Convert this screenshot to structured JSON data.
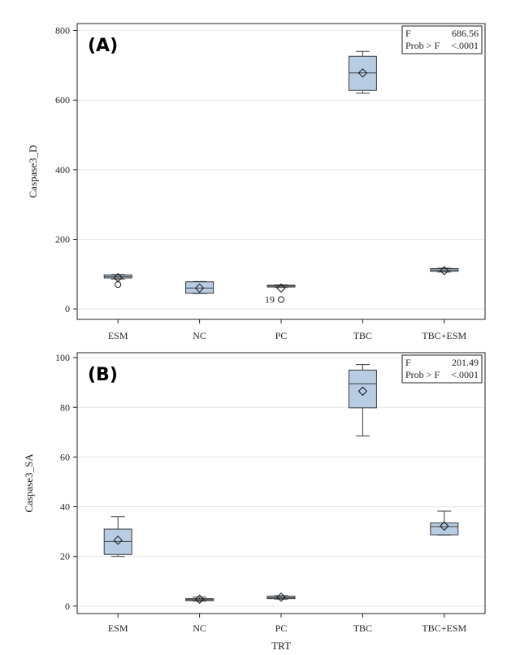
{
  "chart_data": [
    {
      "type": "box",
      "panel_label": "(A)",
      "ylabel": "Caspase3_D",
      "xlabel": "",
      "ylim": [
        -30,
        820
      ],
      "yticks": [
        "0",
        "200",
        "400",
        "600",
        "800"
      ],
      "categories": [
        "ESM",
        "NC",
        "PC",
        "TBC",
        "TBC+ESM"
      ],
      "boxes": [
        {
          "category": "ESM",
          "min": 86,
          "q1": 89,
          "median": 93,
          "q3": 98,
          "max": 99,
          "mean": 90
        },
        {
          "category": "NC",
          "min": 44,
          "q1": 45,
          "median": 60,
          "q3": 78,
          "max": 79,
          "mean": 60
        },
        {
          "category": "PC",
          "min": 62,
          "q1": 63,
          "median": 66,
          "q3": 68,
          "max": 69,
          "mean": 60
        },
        {
          "category": "TBC",
          "min": 620,
          "q1": 628,
          "median": 678,
          "q3": 726,
          "max": 740,
          "mean": 678
        },
        {
          "category": "TBC+ESM",
          "min": 106,
          "q1": 108,
          "median": 112,
          "q3": 116,
          "max": 117,
          "mean": 110
        }
      ],
      "outliers": [
        {
          "category": "ESM",
          "value": 70,
          "label": ""
        },
        {
          "category": "PC",
          "value": 27,
          "label": "19"
        }
      ],
      "stats": {
        "f_label": "F",
        "f_value": "686.56",
        "p_label": "Prob > F",
        "p_value": "<.0001"
      },
      "grid": "horizontal",
      "stats_box_placement": "top-right"
    },
    {
      "type": "box",
      "panel_label": "(B)",
      "ylabel": "Caspase3_SA",
      "xlabel": "TRT",
      "ylim": [
        -3,
        102
      ],
      "yticks": [
        "0",
        "20",
        "40",
        "60",
        "80",
        "100"
      ],
      "categories": [
        "ESM",
        "NC",
        "PC",
        "TBC",
        "TBC+ESM"
      ],
      "boxes": [
        {
          "category": "ESM",
          "min": 20,
          "q1": 20.8,
          "median": 26,
          "q3": 31,
          "max": 36,
          "mean": 26.5
        },
        {
          "category": "NC",
          "min": 2,
          "q1": 2.2,
          "median": 2.6,
          "q3": 3,
          "max": 3.6,
          "mean": 2.8
        },
        {
          "category": "PC",
          "min": 2.8,
          "q1": 3,
          "median": 3.4,
          "q3": 4,
          "max": 4.2,
          "mean": 3.6
        },
        {
          "category": "TBC",
          "min": 68.5,
          "q1": 79.8,
          "median": 89.5,
          "q3": 95,
          "max": 97.2,
          "mean": 86.5
        },
        {
          "category": "TBC+ESM",
          "min": 28.6,
          "q1": 28.7,
          "median": 32,
          "q3": 33.5,
          "max": 38.2,
          "mean": 32.2
        }
      ],
      "outliers": [],
      "stats": {
        "f_label": "F",
        "f_value": "201.49",
        "p_label": "Prob > F",
        "p_value": "<.0001"
      },
      "grid": "horizontal",
      "stats_box_placement": "top-right"
    }
  ],
  "colors": {
    "box_fill": "#b8cde4",
    "box_stroke": "#3a3a3a",
    "grid": "#e6e6e6",
    "axis": "#222222"
  }
}
